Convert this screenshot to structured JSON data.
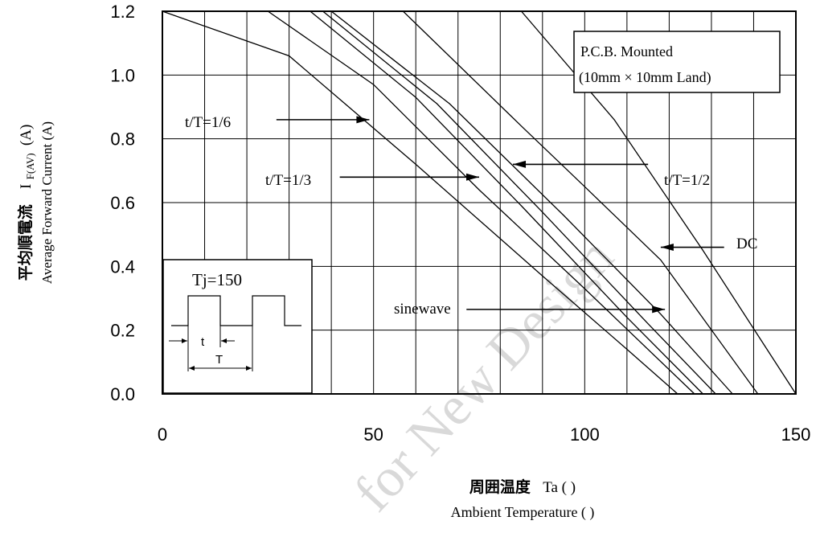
{
  "chart_data": {
    "type": "line",
    "y_axis_label_jp": "平均順電流",
    "y_axis_symbol": "I",
    "y_axis_symbol_sub": "F(AV)",
    "y_axis_unit": "(A)",
    "y_axis_label_en": "Average Forward Current (A)",
    "x_axis_label_jp": "周囲温度",
    "x_axis_symbol": "Ta (  )",
    "x_axis_label_en": "Ambient Temperature (  )",
    "xlim": [
      0,
      150
    ],
    "ylim": [
      0,
      1.2
    ],
    "x_ticks": [
      "0",
      "50",
      "100",
      "150"
    ],
    "y_ticks": [
      "0.0",
      "0.2",
      "0.4",
      "0.6",
      "0.8",
      "1.0",
      "1.2"
    ],
    "grid": true,
    "series": [
      {
        "name": "t/T=1/6",
        "x": [
          0,
          30,
          60,
          90,
          110,
          122
        ],
        "y": [
          1.2,
          1.06,
          0.72,
          0.37,
          0.14,
          0.0
        ]
      },
      {
        "name": "t/T=1/3",
        "x": [
          25,
          50,
          75,
          100,
          126
        ],
        "y": [
          1.2,
          0.97,
          0.64,
          0.33,
          0.0
        ]
      },
      {
        "name": "sinewave",
        "x": [
          35,
          60,
          85,
          110,
          128
        ],
        "y": [
          1.2,
          0.93,
          0.59,
          0.24,
          0.0
        ]
      },
      {
        "name": "t/T=1/2",
        "x": [
          38,
          65,
          90,
          115,
          131
        ],
        "y": [
          1.2,
          0.91,
          0.57,
          0.22,
          0.0
        ]
      },
      {
        "name": "",
        "x": [
          40,
          68,
          95,
          118,
          135
        ],
        "y": [
          1.2,
          0.91,
          0.56,
          0.25,
          0.0
        ]
      },
      {
        "name": "DC",
        "x": [
          57,
          85,
          100,
          118,
          141
        ],
        "y": [
          1.2,
          0.84,
          0.65,
          0.42,
          0.0
        ]
      },
      {
        "name": "",
        "x": [
          85,
          107,
          128,
          150
        ],
        "y": [
          1.2,
          0.86,
          0.45,
          0.0
        ]
      }
    ],
    "annotations": [
      {
        "text": "t/T=1/6",
        "label_at": [
          5,
          0.85
        ],
        "arrow_from": [
          27,
          0.86
        ],
        "arrow_to": [
          49,
          0.86
        ]
      },
      {
        "text": "t/T=1/3",
        "label_at": [
          24,
          0.67
        ],
        "arrow_from": [
          42,
          0.68
        ],
        "arrow_to": [
          75,
          0.68
        ]
      },
      {
        "text": "t/T=1/2",
        "label_at": [
          118,
          0.69
        ],
        "arrow_from": [
          115,
          0.72
        ],
        "arrow_to": [
          83,
          0.72
        ]
      },
      {
        "text": "DC",
        "label_at": [
          136,
          0.46
        ],
        "arrow_from": [
          133,
          0.46
        ],
        "arrow_to": [
          118,
          0.46
        ]
      },
      {
        "text": "sinewave",
        "label_at": [
          55,
          0.27
        ],
        "arrow_from": [
          72,
          0.265
        ],
        "arrow_to": [
          119,
          0.265
        ]
      }
    ],
    "condition_box": {
      "line1": "P.C.B. Mounted",
      "line2": "(10mm × 10mm   Land)"
    },
    "waveform_inset": {
      "title": "Tj=150",
      "t_label": "t",
      "T_label": "T"
    }
  },
  "watermark": "for New Design"
}
